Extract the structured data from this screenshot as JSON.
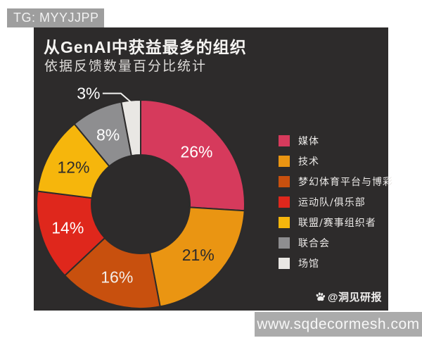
{
  "badge": {
    "text": "TG: MYYJJPP"
  },
  "card": {
    "title": "从GenAI中获益最多的组织",
    "subtitle": "依据反馈数量百分比统计"
  },
  "chart_data": {
    "type": "pie",
    "donut": true,
    "title": "从GenAI中获益最多的组织",
    "subtitle": "依据反馈数量百分比统计",
    "unit": "%",
    "start_angle_deg": 0,
    "direction": "clockwise",
    "legend_position": "right",
    "background_color": "#2d2b2b",
    "segments": [
      {
        "label": "媒体",
        "value": 26,
        "color": "#d63a5c",
        "label_color": "#ffffff"
      },
      {
        "label": "技术",
        "value": 21,
        "color": "#ea9512",
        "label_color": "#2d2b2b"
      },
      {
        "label": "梦幻体育平台与博彩",
        "value": 16,
        "color": "#c8500e",
        "label_color": "#f3ede8"
      },
      {
        "label": "运动队/俱乐部",
        "value": 14,
        "color": "#df271c",
        "label_color": "#ffffff"
      },
      {
        "label": "联盟/赛事组织者",
        "value": 12,
        "color": "#f6b60c",
        "label_color": "#2d2b2b"
      },
      {
        "label": "联合会",
        "value": 8,
        "color": "#8e8e90",
        "label_color": "#ffffff"
      },
      {
        "label": "场馆",
        "value": 3,
        "color": "#e9e7e4",
        "label_color": "#ffffff",
        "label_outside": true
      }
    ]
  },
  "source_watermark": {
    "icon": "paw-icon",
    "text": "@洞见研报"
  },
  "bottom_bar": {
    "text": "www.sqdecormesh.com"
  }
}
